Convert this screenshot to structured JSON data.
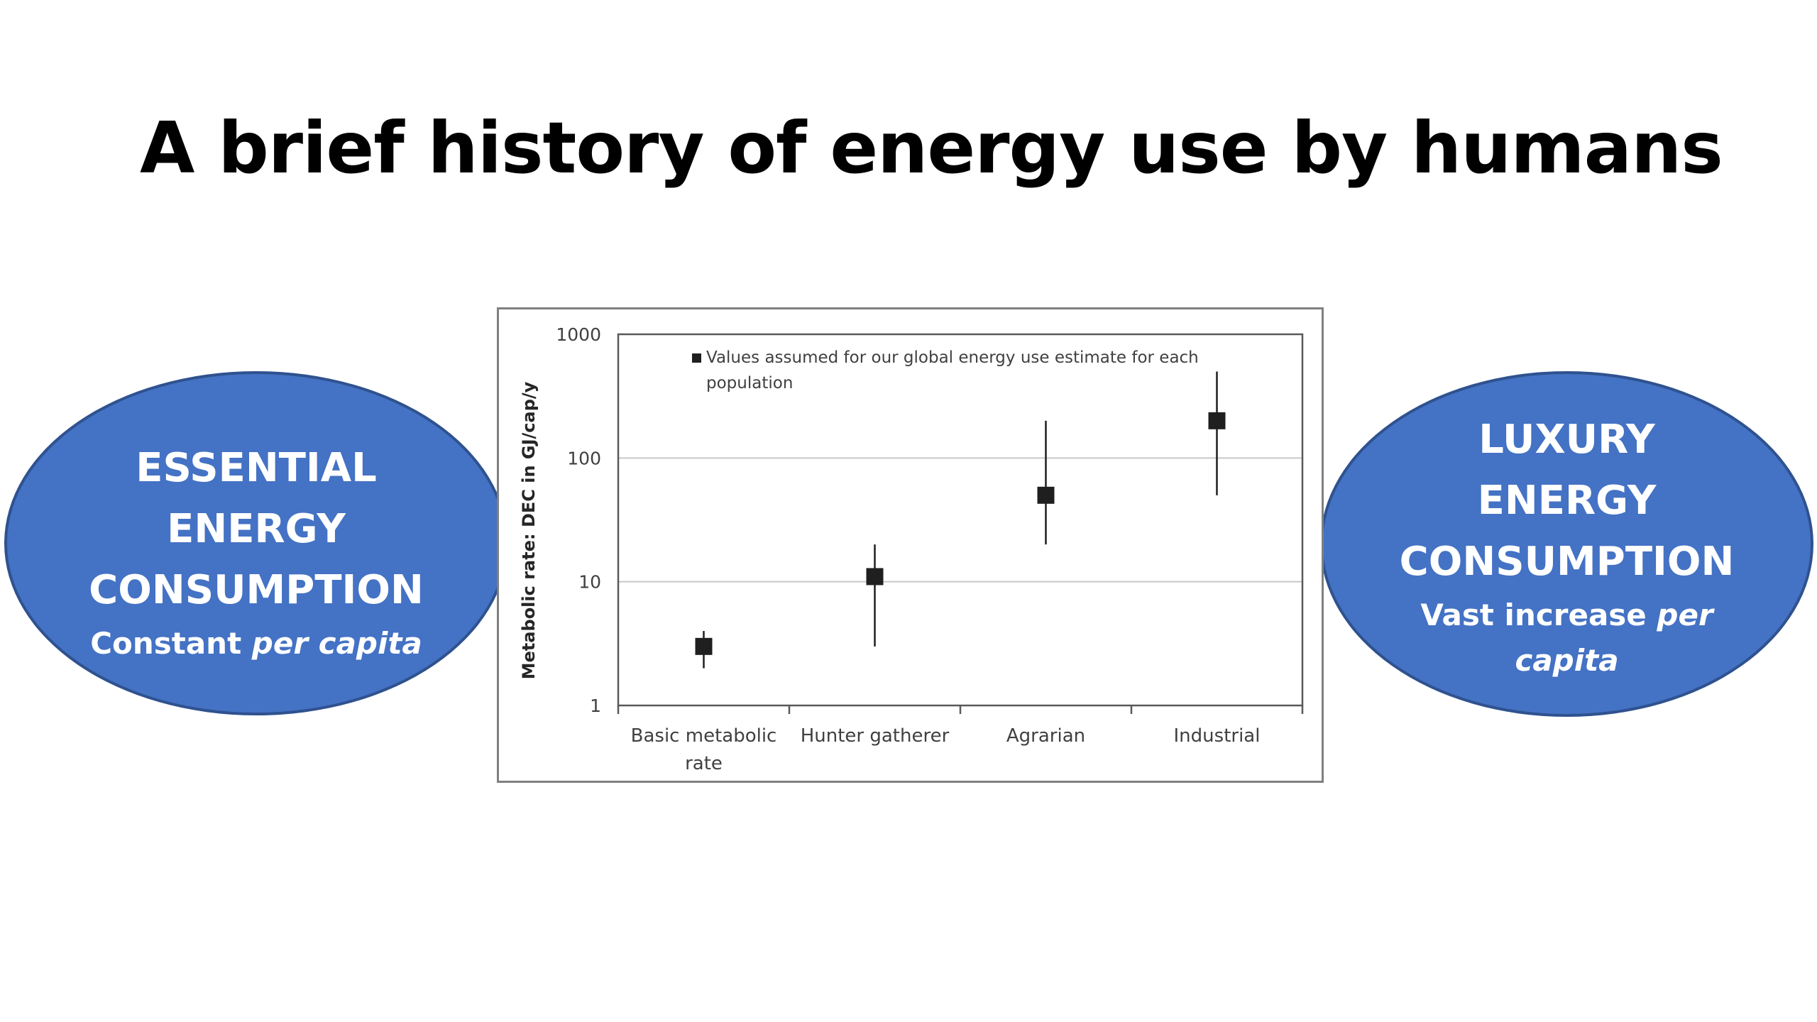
{
  "slide": {
    "title": "A brief history of energy use by humans"
  },
  "left_ellipse": {
    "lines": [
      "ESSENTIAL",
      "ENERGY",
      "CONSUMPTION"
    ],
    "sub_plain": "Constant ",
    "sub_italic": "per capita"
  },
  "right_ellipse": {
    "lines": [
      "LUXURY",
      "ENERGY",
      "CONSUMPTION"
    ],
    "sub_plain": "Vast increase ",
    "sub_italic": "per",
    "sub_italic2": "capita"
  },
  "colors": {
    "ellipse_fill": "#4472c4",
    "ellipse_border": "#2f528f",
    "marker": "#1f1f1f"
  },
  "chart_data": {
    "type": "scatter",
    "categories": [
      "Basic metabolic rate",
      "Hunter gatherer",
      "Agrarian",
      "Industrial"
    ],
    "category_label_lines": [
      [
        "Basic metabolic",
        "rate"
      ],
      [
        "Hunter gatherer"
      ],
      [
        "Agrarian"
      ],
      [
        "Industrial"
      ]
    ],
    "series": [
      {
        "name": "Values assumed for our global energy use estimate for each population",
        "values": [
          3,
          11,
          50,
          200
        ],
        "low": [
          2,
          3,
          20,
          50
        ],
        "high": [
          4,
          20,
          200,
          500
        ]
      }
    ],
    "legend_lines": [
      "Values assumed for our global energy use estimate for each",
      "population"
    ],
    "legend_position": "top",
    "ylabel": "Metabolic rate: DEC in GJ/cap/y",
    "xlabel": "",
    "yscale": "log",
    "ylim": [
      1,
      1000
    ],
    "yticks": [
      1,
      10,
      100,
      1000
    ],
    "ytick_labels": [
      "1",
      "10",
      "100",
      "1000"
    ],
    "grid": true
  }
}
